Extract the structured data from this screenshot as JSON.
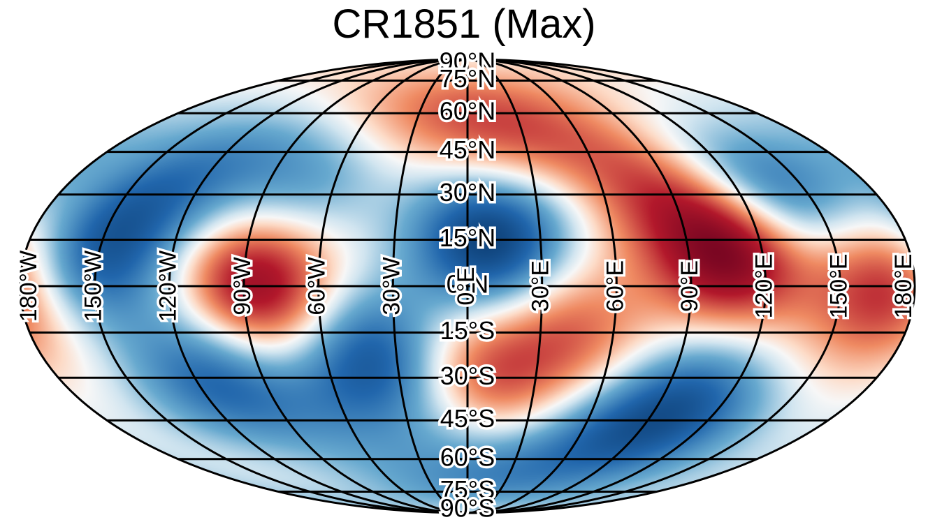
{
  "title": "CR1851 (Max)",
  "projection": "Mollweide",
  "colormap": "diverging red-white-blue",
  "colors": {
    "red": "#67001f",
    "white": "#f7f7f7",
    "blue": "#053061"
  },
  "lat_labels": [
    {
      "lat": 90,
      "text": "90°N"
    },
    {
      "lat": 75,
      "text": "75°N"
    },
    {
      "lat": 60,
      "text": "60°N"
    },
    {
      "lat": 45,
      "text": "45°N"
    },
    {
      "lat": 30,
      "text": "30°N"
    },
    {
      "lat": 15,
      "text": "15°N"
    },
    {
      "lat": 0,
      "text": "0°N"
    },
    {
      "lat": -15,
      "text": "15°S"
    },
    {
      "lat": -30,
      "text": "30°S"
    },
    {
      "lat": -45,
      "text": "45°S"
    },
    {
      "lat": -60,
      "text": "60°S"
    },
    {
      "lat": -75,
      "text": "75°S"
    },
    {
      "lat": -90,
      "text": "90°S"
    }
  ],
  "lon_labels": [
    {
      "lon": -180,
      "text": "180°W"
    },
    {
      "lon": -150,
      "text": "150°W"
    },
    {
      "lon": -120,
      "text": "120°W"
    },
    {
      "lon": -90,
      "text": "90°W"
    },
    {
      "lon": -60,
      "text": "60°W"
    },
    {
      "lon": -30,
      "text": "30°W"
    },
    {
      "lon": 0,
      "text": "0°E"
    },
    {
      "lon": 30,
      "text": "30°E"
    },
    {
      "lon": 60,
      "text": "60°E"
    },
    {
      "lon": 90,
      "text": "90°E"
    },
    {
      "lon": 120,
      "text": "120°E"
    },
    {
      "lon": 150,
      "text": "150°E"
    },
    {
      "lon": 180,
      "text": "180°E"
    }
  ],
  "field_features": [
    {
      "lon": 107,
      "lat": 12,
      "sign": 1,
      "amplitude": 1.0
    },
    {
      "lon": 20,
      "lat": 50,
      "sign": 1,
      "amplitude": 0.4
    },
    {
      "lon": 75,
      "lat": 38,
      "sign": 1,
      "amplitude": 0.35
    },
    {
      "lon": 40,
      "lat": -15,
      "sign": 1,
      "amplitude": 0.45
    },
    {
      "lon": 0,
      "lat": -30,
      "sign": 1,
      "amplitude": 0.5
    },
    {
      "lon": -85,
      "lat": 0,
      "sign": 1,
      "amplitude": 0.85
    },
    {
      "lon": 170,
      "lat": 0,
      "sign": 1,
      "amplitude": 0.65
    },
    {
      "lon": -40,
      "lat": 55,
      "sign": 1,
      "amplitude": 0.3
    },
    {
      "lon": 10,
      "lat": 15,
      "sign": -1,
      "amplitude": 0.95
    },
    {
      "lon": 135,
      "lat": 30,
      "sign": -1,
      "amplitude": 0.7
    },
    {
      "lon": -40,
      "lat": -25,
      "sign": -1,
      "amplitude": 0.8
    },
    {
      "lon": -150,
      "lat": 10,
      "sign": -1,
      "amplitude": 0.7
    },
    {
      "lon": -110,
      "lat": -30,
      "sign": -1,
      "amplitude": 0.65
    },
    {
      "lon": 100,
      "lat": -40,
      "sign": -1,
      "amplitude": 0.7
    },
    {
      "lon": -70,
      "lat": 35,
      "sign": -1,
      "amplitude": 0.45
    },
    {
      "lon": -130,
      "lat": 35,
      "sign": -1,
      "amplitude": 0.4
    },
    {
      "lon": 60,
      "lat": -55,
      "sign": -1,
      "amplitude": 0.35
    },
    {
      "lon": -20,
      "lat": -60,
      "sign": -1,
      "amplitude": 0.3
    }
  ]
}
